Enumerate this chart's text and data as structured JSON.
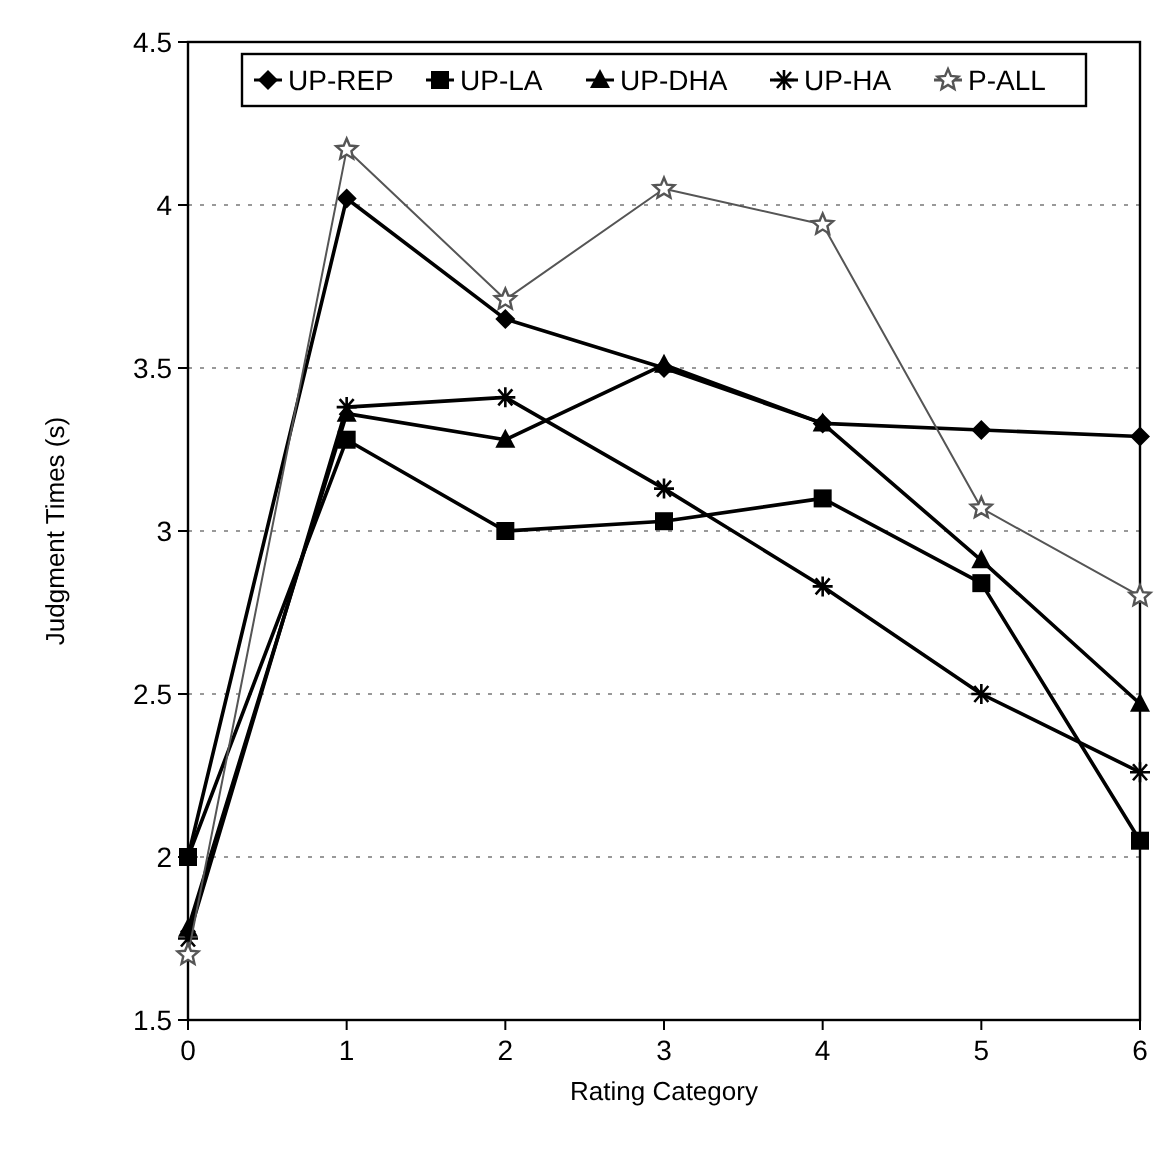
{
  "chart_data": {
    "type": "line",
    "xlabel": "Rating Category",
    "ylabel": "Judgment Times (s)",
    "x": [
      0,
      1,
      2,
      3,
      4,
      5,
      6
    ],
    "xlim": [
      0,
      6
    ],
    "xticks": [
      0,
      1,
      2,
      3,
      4,
      5,
      6
    ],
    "ylim": [
      1.5,
      4.5
    ],
    "yticks": [
      1.5,
      2,
      2.5,
      3,
      3.5,
      4,
      4.5
    ],
    "grid": "y",
    "legend": "top",
    "series": [
      {
        "name": "UP-REP",
        "color": "#000000",
        "marker": "diamond",
        "values": [
          2.0,
          4.02,
          3.65,
          3.5,
          3.33,
          3.31,
          3.29
        ]
      },
      {
        "name": "UP-LA",
        "color": "#000000",
        "marker": "square",
        "values": [
          2.0,
          3.28,
          3.0,
          3.03,
          3.1,
          2.84,
          2.05
        ]
      },
      {
        "name": "UP-DHA",
        "color": "#000000",
        "marker": "triangle",
        "values": [
          1.78,
          3.36,
          3.28,
          3.51,
          3.33,
          2.91,
          2.47
        ]
      },
      {
        "name": "UP-HA",
        "color": "#000000",
        "marker": "cross",
        "values": [
          1.75,
          3.38,
          3.41,
          3.13,
          2.83,
          2.5,
          2.26
        ]
      },
      {
        "name": "P-ALL",
        "color": "#555555",
        "marker": "star",
        "values": [
          1.7,
          4.17,
          3.71,
          4.05,
          3.94,
          3.07,
          2.8
        ]
      }
    ]
  }
}
